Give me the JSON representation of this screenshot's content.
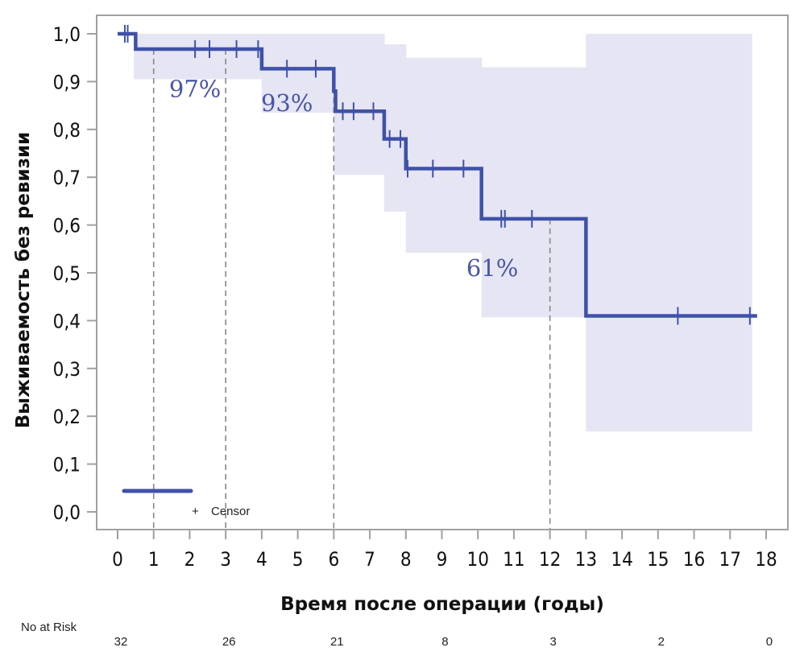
{
  "chart_data": {
    "type": "line",
    "subtype": "kaplan-meier",
    "xlabel": "Время после операции (годы)",
    "ylabel": "Выживаемость без ревизии",
    "xlim": [
      0,
      18
    ],
    "ylim": [
      0,
      1
    ],
    "x_ticks": [
      0,
      1,
      2,
      3,
      4,
      5,
      6,
      7,
      8,
      9,
      10,
      11,
      12,
      13,
      14,
      15,
      16,
      17,
      18
    ],
    "x_tick_labels": [
      "0",
      "1",
      "2",
      "3",
      "4",
      "5",
      "6",
      "7",
      "8",
      "9",
      "10",
      "11",
      "12",
      "13",
      "14",
      "15",
      "16",
      "17",
      "18"
    ],
    "y_ticks": [
      0,
      0.1,
      0.2,
      0.3,
      0.4,
      0.5,
      0.6,
      0.7,
      0.8,
      0.9,
      1.0
    ],
    "y_tick_labels": [
      "0,0",
      "0,1",
      "0,2",
      "0,3",
      "0,4",
      "0,5",
      "0,6",
      "0,7",
      "0,8",
      "0,9",
      "1,0"
    ],
    "colors": {
      "line": "#3f51a8",
      "band": "#e5e5f3",
      "axis": "#a0a0a0",
      "ref": "#888888",
      "label": "#4a56a6"
    },
    "survival_steps": [
      {
        "t": 0.0,
        "s": 1.0
      },
      {
        "t": 0.5,
        "s": 0.968
      },
      {
        "t": 4.0,
        "s": 0.927
      },
      {
        "t": 6.0,
        "s": 0.88
      },
      {
        "t": 6.05,
        "s": 0.838
      },
      {
        "t": 7.4,
        "s": 0.78
      },
      {
        "t": 8.0,
        "s": 0.718
      },
      {
        "t": 10.1,
        "s": 0.613
      },
      {
        "t": 13.0,
        "s": 0.41
      }
    ],
    "end_time": 17.75,
    "censor_times": [
      0.2,
      0.28,
      2.15,
      2.55,
      3.3,
      3.9,
      4.7,
      5.5,
      6.25,
      6.55,
      7.1,
      7.55,
      7.85,
      8.05,
      8.75,
      9.6,
      10.65,
      10.75,
      11.5,
      15.55,
      17.55
    ],
    "confidence_band": [
      {
        "t0": 0.45,
        "t1": 4.0,
        "lower": 0.905,
        "upper": 1.0
      },
      {
        "t0": 4.0,
        "t1": 6.0,
        "lower": 0.835,
        "upper": 1.0
      },
      {
        "t0": 6.0,
        "t1": 7.4,
        "lower": 0.705,
        "upper": 1.0
      },
      {
        "t0": 7.4,
        "t1": 8.0,
        "lower": 0.628,
        "upper": 0.978
      },
      {
        "t0": 8.0,
        "t1": 10.1,
        "lower": 0.542,
        "upper": 0.95
      },
      {
        "t0": 10.1,
        "t1": 13.0,
        "lower": 0.407,
        "upper": 0.93
      },
      {
        "t0": 13.0,
        "t1": 17.6,
        "lower": 0.168,
        "upper": 1.0
      }
    ],
    "reference_lines": [
      {
        "t": 1,
        "s": 0.968
      },
      {
        "t": 3,
        "s": 0.968
      },
      {
        "t": 6,
        "s": 0.927
      },
      {
        "t": 12,
        "s": 0.613
      }
    ],
    "annotations": [
      {
        "text": "97%",
        "t": 2.15,
        "s": 0.885
      },
      {
        "text": "93%",
        "t": 4.7,
        "s": 0.855
      },
      {
        "text": "61%",
        "t": 10.4,
        "s": 0.51
      }
    ],
    "legend": {
      "label": "Censor",
      "symbol": "+",
      "placement": "bottom-left"
    },
    "at_risk": {
      "label": "No at Risk",
      "times": [
        0,
        3,
        6,
        9,
        12,
        15,
        18
      ],
      "values": [
        "32",
        "26",
        "21",
        "8",
        "3",
        "2",
        "0"
      ]
    }
  }
}
